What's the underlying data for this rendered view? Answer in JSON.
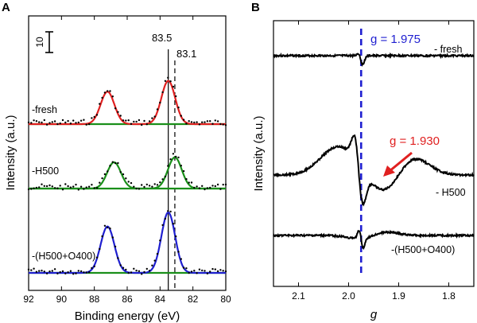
{
  "chart_data": [
    {
      "panel": "A",
      "type": "line",
      "xlabel": "Binding energy (eV)",
      "ylabel": "Intensity (a.u.)",
      "xlim": [
        92,
        80
      ],
      "x_ticks": [
        92,
        90,
        88,
        86,
        84,
        82,
        80
      ],
      "scale_bar_label": "10",
      "reference_lines": [
        {
          "x": 83.5,
          "label": "83.5",
          "style": "solid"
        },
        {
          "x": 83.1,
          "label": "83.1",
          "style": "dashed"
        }
      ],
      "series": [
        {
          "name": "-fresh",
          "peak_centers": [
            87.2,
            83.5
          ],
          "peak_heights": [
            0.9,
            1.2
          ],
          "fit_color": "#e02020",
          "offset": 2
        },
        {
          "name": "-H500",
          "peak_centers": [
            86.8,
            83.1
          ],
          "peak_heights": [
            0.8,
            0.95
          ],
          "fit_color": "#1a8f1a",
          "offset": 1
        },
        {
          "name": "-(H500+O400)",
          "peak_centers": [
            87.2,
            83.5
          ],
          "peak_heights": [
            1.15,
            1.5
          ],
          "fit_color": "#1f1fd0",
          "offset": 0
        }
      ],
      "colors": {
        "baseline": "#1a8f1a",
        "data_points": "#000000"
      }
    },
    {
      "panel": "B",
      "type": "line",
      "xlabel": "g",
      "ylabel": "Intensity (a.u.)",
      "xlim": [
        2.15,
        1.75
      ],
      "x_ticks": [
        2.1,
        2.0,
        1.9,
        1.8
      ],
      "reference_line": {
        "x": 1.975,
        "label": "g = 1.975",
        "color": "#1f1fd0"
      },
      "annotation": {
        "label": "g = 1.930",
        "x": 1.93,
        "color": "#e02020"
      },
      "series": [
        {
          "name": "- fresh",
          "offset": 2
        },
        {
          "name": "- H500",
          "offset": 1
        },
        {
          "name": "-(H500+O400)",
          "offset": 0
        }
      ]
    }
  ]
}
